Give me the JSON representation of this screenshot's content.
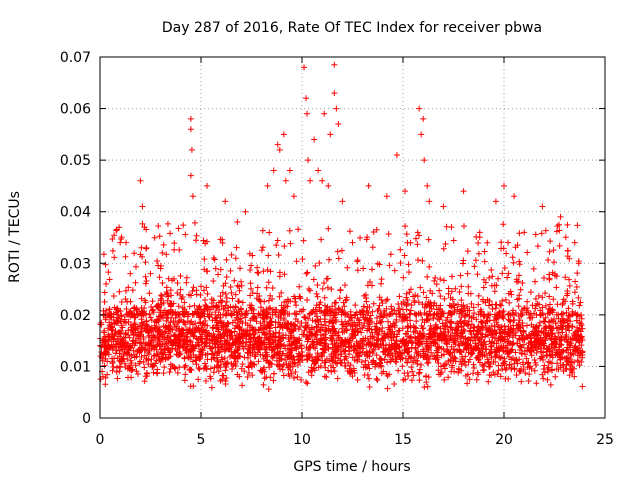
{
  "chart_data": {
    "type": "scatter",
    "title": "Day 287 of 2016, Rate Of TEC Index for receiver pbwa",
    "xlabel": "GPS time / hours",
    "ylabel": "ROTI / TECUs",
    "xlim": [
      0,
      25
    ],
    "ylim": [
      0,
      0.07
    ],
    "xticks": [
      0,
      5,
      10,
      15,
      20,
      25
    ],
    "xtick_labels": [
      "0",
      "5",
      "10",
      "15",
      "20",
      "25"
    ],
    "yticks": [
      0,
      0.01,
      0.02,
      0.03,
      0.04,
      0.05,
      0.06,
      0.07
    ],
    "ytick_labels": [
      "0",
      "0.01",
      "0.02",
      "0.03",
      "0.04",
      "0.05",
      "0.06",
      "0.07"
    ],
    "grid": true,
    "marker": "+",
    "color": "#ff0000",
    "series": [
      {
        "name": "ROTI",
        "x_range": [
          0.0,
          23.9
        ],
        "typical_range": [
          0.005,
          0.025
        ],
        "x": [
          0.3,
          1.0,
          1.5,
          2.0,
          2.1,
          2.2,
          2.3,
          3.0,
          3.4,
          4.5,
          4.5,
          4.55,
          4.5,
          4.6,
          5.3,
          6.2,
          6.8,
          7.2,
          8.3,
          8.6,
          8.8,
          8.9,
          9.1,
          9.2,
          9.4,
          9.6,
          10.1,
          10.2,
          10.25,
          10.3,
          10.4,
          10.6,
          10.8,
          11.0,
          11.1,
          11.3,
          11.4,
          11.6,
          11.6,
          11.7,
          11.8,
          12.0,
          12.5,
          13.3,
          14.2,
          14.7,
          15.1,
          15.8,
          15.9,
          16.0,
          16.05,
          16.2,
          16.3,
          17.0,
          17.4,
          18.0,
          18.8,
          19.6,
          20.0,
          20.2,
          20.5,
          21.0,
          21.9,
          22.8,
          23.5,
          23.7
        ],
        "y": [
          0.026,
          0.034,
          0.028,
          0.046,
          0.041,
          0.037,
          0.033,
          0.029,
          0.027,
          0.058,
          0.056,
          0.052,
          0.047,
          0.043,
          0.045,
          0.042,
          0.038,
          0.04,
          0.045,
          0.048,
          0.053,
          0.052,
          0.055,
          0.046,
          0.048,
          0.043,
          0.068,
          0.062,
          0.059,
          0.05,
          0.046,
          0.054,
          0.048,
          0.046,
          0.059,
          0.045,
          0.055,
          0.0685,
          0.063,
          0.06,
          0.057,
          0.042,
          0.034,
          0.045,
          0.043,
          0.051,
          0.044,
          0.06,
          0.055,
          0.058,
          0.05,
          0.045,
          0.042,
          0.041,
          0.037,
          0.044,
          0.036,
          0.042,
          0.045,
          0.034,
          0.043,
          0.036,
          0.041,
          0.039,
          0.034,
          0.03
        ]
      }
    ]
  }
}
